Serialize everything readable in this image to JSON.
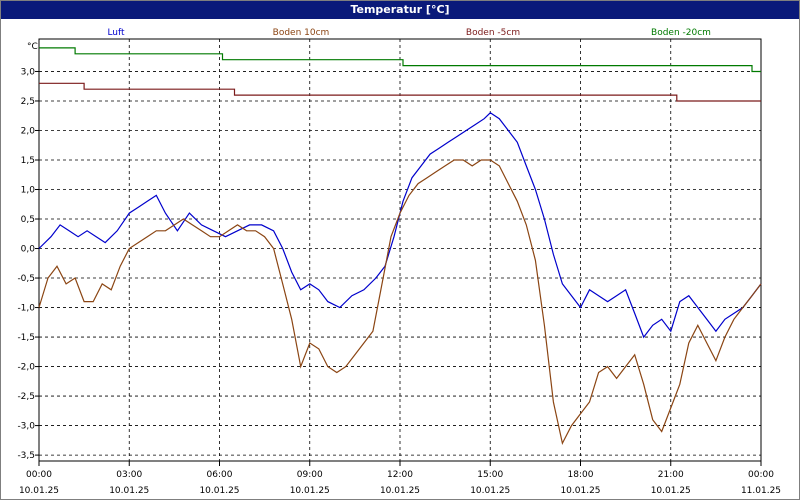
{
  "window": {
    "title": "Temperatur [°C]"
  },
  "chart_data": {
    "type": "line",
    "title": "Temperatur [°C]",
    "ylabel": "°C",
    "ylim": [
      -3.6,
      3.55
    ],
    "xlim": [
      0,
      24
    ],
    "grid": true,
    "legend_position": "top",
    "y_ticks": [
      3.0,
      2.5,
      2.0,
      1.5,
      1.0,
      0.5,
      0.0,
      -0.5,
      -1.0,
      -1.5,
      -2.0,
      -2.5,
      -3.0,
      -3.5
    ],
    "y_tick_labels": [
      "3,0",
      "2,5",
      "2,0",
      "1,5",
      "1,0",
      "0,5",
      "0,0",
      "-0,5",
      "-1,0",
      "-1,5",
      "-2,0",
      "-2,5",
      "-3,0",
      "-3,5"
    ],
    "x_ticks": [
      {
        "hour": 0,
        "time": "00:00",
        "date": "10.01.25"
      },
      {
        "hour": 3,
        "time": "03:00",
        "date": "10.01.25"
      },
      {
        "hour": 6,
        "time": "06:00",
        "date": "10.01.25"
      },
      {
        "hour": 9,
        "time": "09:00",
        "date": "10.01.25"
      },
      {
        "hour": 12,
        "time": "12:00",
        "date": "10.01.25"
      },
      {
        "hour": 15,
        "time": "15:00",
        "date": "10.01.25"
      },
      {
        "hour": 18,
        "time": "18:00",
        "date": "10.01.25"
      },
      {
        "hour": 21,
        "time": "21:00",
        "date": "10.01.25"
      },
      {
        "hour": 24,
        "time": "00:00",
        "date": "11.01.25"
      }
    ],
    "series": [
      {
        "name": "Luft",
        "color": "#0000cc",
        "x": [
          0,
          0.4,
          0.7,
          1.0,
          1.3,
          1.6,
          1.9,
          2.2,
          2.6,
          3.0,
          3.3,
          3.6,
          3.9,
          4.2,
          4.6,
          5.0,
          5.4,
          5.8,
          6.2,
          6.6,
          7.0,
          7.4,
          7.8,
          8.1,
          8.4,
          8.7,
          9.0,
          9.3,
          9.6,
          10.0,
          10.4,
          10.8,
          11.2,
          11.5,
          11.8,
          12.1,
          12.4,
          12.7,
          13.0,
          13.3,
          13.6,
          13.9,
          14.2,
          14.5,
          14.8,
          15.0,
          15.3,
          15.6,
          15.9,
          16.2,
          16.5,
          16.8,
          17.1,
          17.4,
          17.7,
          18.0,
          18.3,
          18.6,
          18.9,
          19.2,
          19.5,
          19.8,
          20.1,
          20.4,
          20.7,
          21.0,
          21.3,
          21.6,
          21.9,
          22.2,
          22.5,
          22.8,
          23.1,
          23.4,
          23.7,
          24.0
        ],
        "values": [
          0.0,
          0.2,
          0.4,
          0.3,
          0.2,
          0.3,
          0.2,
          0.1,
          0.3,
          0.6,
          0.7,
          0.8,
          0.9,
          0.6,
          0.3,
          0.6,
          0.4,
          0.3,
          0.2,
          0.3,
          0.4,
          0.4,
          0.3,
          0.0,
          -0.4,
          -0.7,
          -0.6,
          -0.7,
          -0.9,
          -1.0,
          -0.8,
          -0.7,
          -0.5,
          -0.3,
          0.2,
          0.8,
          1.2,
          1.4,
          1.6,
          1.7,
          1.8,
          1.9,
          2.0,
          2.1,
          2.2,
          2.3,
          2.2,
          2.0,
          1.8,
          1.4,
          1.0,
          0.5,
          -0.1,
          -0.6,
          -0.8,
          -1.0,
          -0.7,
          -0.8,
          -0.9,
          -0.8,
          -0.7,
          -1.1,
          -1.5,
          -1.3,
          -1.2,
          -1.4,
          -0.9,
          -0.8,
          -1.0,
          -1.2,
          -1.4,
          -1.2,
          -1.1,
          -1.0,
          -0.8,
          -0.6
        ]
      },
      {
        "name": "Boden 10cm",
        "color": "#8b4513",
        "x": [
          0,
          0.3,
          0.6,
          0.9,
          1.2,
          1.5,
          1.8,
          2.1,
          2.4,
          2.7,
          3.0,
          3.3,
          3.6,
          3.9,
          4.2,
          4.5,
          4.8,
          5.1,
          5.4,
          5.7,
          6.0,
          6.3,
          6.6,
          6.9,
          7.2,
          7.5,
          7.8,
          8.1,
          8.4,
          8.7,
          9.0,
          9.3,
          9.6,
          9.9,
          10.2,
          10.5,
          10.8,
          11.1,
          11.4,
          11.7,
          12.0,
          12.3,
          12.6,
          12.9,
          13.2,
          13.5,
          13.8,
          14.1,
          14.4,
          14.7,
          15.0,
          15.3,
          15.6,
          15.9,
          16.2,
          16.5,
          16.8,
          17.1,
          17.4,
          17.7,
          18.0,
          18.3,
          18.6,
          18.9,
          19.2,
          19.5,
          19.8,
          20.1,
          20.4,
          20.7,
          21.0,
          21.3,
          21.6,
          21.9,
          22.2,
          22.5,
          22.8,
          23.1,
          23.4,
          23.7,
          24.0
        ],
        "values": [
          -1.0,
          -0.5,
          -0.3,
          -0.6,
          -0.5,
          -0.9,
          -0.9,
          -0.6,
          -0.7,
          -0.3,
          0.0,
          0.1,
          0.2,
          0.3,
          0.3,
          0.4,
          0.5,
          0.4,
          0.3,
          0.2,
          0.2,
          0.3,
          0.4,
          0.3,
          0.3,
          0.2,
          0.0,
          -0.6,
          -1.2,
          -2.0,
          -1.6,
          -1.7,
          -2.0,
          -2.1,
          -2.0,
          -1.8,
          -1.6,
          -1.4,
          -0.6,
          0.2,
          0.6,
          0.9,
          1.1,
          1.2,
          1.3,
          1.4,
          1.5,
          1.5,
          1.4,
          1.5,
          1.5,
          1.4,
          1.1,
          0.8,
          0.4,
          -0.2,
          -1.3,
          -2.6,
          -3.3,
          -3.0,
          -2.8,
          -2.6,
          -2.1,
          -2.0,
          -2.2,
          -2.0,
          -1.8,
          -2.3,
          -2.9,
          -3.1,
          -2.7,
          -2.3,
          -1.6,
          -1.3,
          -1.6,
          -1.9,
          -1.5,
          -1.2,
          -1.0,
          -0.8,
          -0.6
        ]
      },
      {
        "name": "Boden -5cm",
        "color": "#7b1a1a",
        "x": [
          0,
          1.5,
          1.5,
          6.5,
          6.5,
          21.2,
          21.2,
          24.0
        ],
        "values": [
          2.8,
          2.8,
          2.7,
          2.7,
          2.6,
          2.6,
          2.5,
          2.5
        ]
      },
      {
        "name": "Boden -20cm",
        "color": "#007a00",
        "x": [
          0,
          1.2,
          1.2,
          6.1,
          6.1,
          12.1,
          12.1,
          23.7,
          23.7,
          24.0
        ],
        "values": [
          3.4,
          3.4,
          3.3,
          3.3,
          3.2,
          3.2,
          3.1,
          3.1,
          3.0,
          3.0
        ]
      }
    ]
  }
}
